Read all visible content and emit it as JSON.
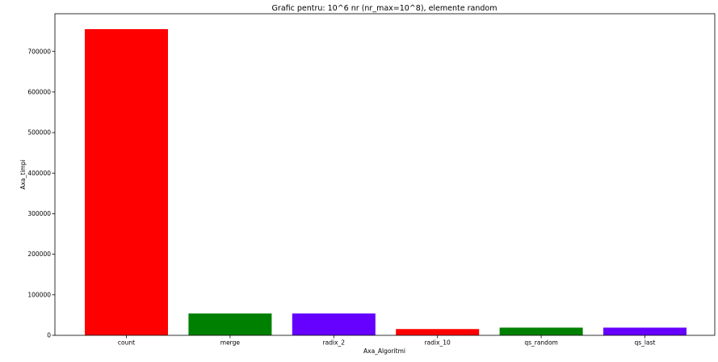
{
  "chart_data": {
    "type": "bar",
    "title": "Grafic pentru: 10^6 nr (nr_max=10^8), elemente random",
    "xlabel": "Axa_Algoritmi",
    "ylabel": "Axa_timpi",
    "categories": [
      "count",
      "merge",
      "radix_2",
      "radix_10",
      "qs_random",
      "qs_last"
    ],
    "values": [
      755000,
      54000,
      54000,
      15500,
      19000,
      19000
    ],
    "bar_colors": [
      "#ff0000",
      "#008000",
      "#6600ff",
      "#ff0000",
      "#008000",
      "#6600ff"
    ],
    "ylim": [
      0,
      793000
    ],
    "yticks": [
      0,
      100000,
      200000,
      300000,
      400000,
      500000,
      600000,
      700000
    ],
    "ytick_labels": [
      "0",
      "100000",
      "200000",
      "300000",
      "400000",
      "500000",
      "600000",
      "700000"
    ],
    "grid": false,
    "legend": "none"
  }
}
